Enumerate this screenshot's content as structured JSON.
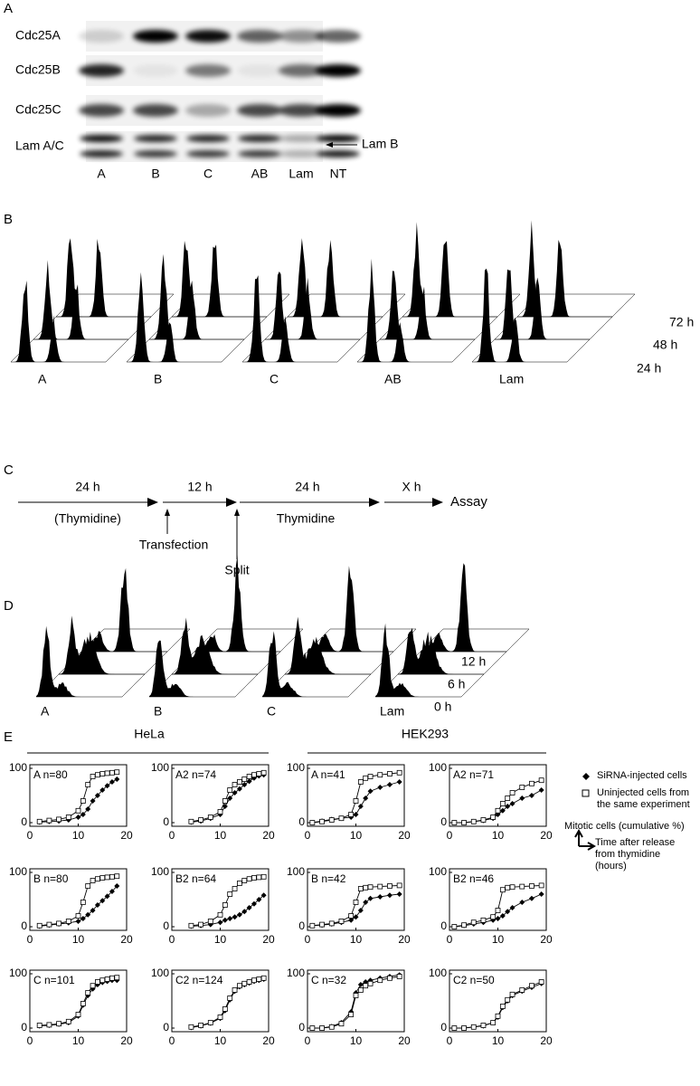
{
  "panels": {
    "a": {
      "label": "A",
      "rows": [
        "Cdc25A",
        "Cdc25B",
        "Cdc25C",
        "Lam A/C"
      ],
      "lanes": [
        "A",
        "B",
        "C",
        "AB",
        "Lam",
        "NT"
      ],
      "annotation": "Lam B"
    },
    "b": {
      "label": "B",
      "groups": [
        "A",
        "B",
        "C",
        "AB",
        "Lam"
      ],
      "times": [
        "72 h",
        "48 h",
        "24 h"
      ]
    },
    "c": {
      "label": "C",
      "durations": [
        "24 h",
        "12 h",
        "24 h",
        "X h"
      ],
      "treatments": [
        "(Thymidine)",
        "Thymidine"
      ],
      "events": [
        "Transfection",
        "Split"
      ],
      "end": "Assay"
    },
    "d": {
      "label": "D",
      "groups": [
        "A",
        "B",
        "C",
        "Lam"
      ],
      "times": [
        "12 h",
        "6 h",
        "0 h"
      ]
    },
    "e": {
      "label": "E",
      "cell_lines": [
        "HeLa",
        "HEK293"
      ],
      "y_axis_note": "Mitotic cells (cumulative %)",
      "x_axis_note": "Time after release from thymidine (hours)"
    }
  },
  "chart_data": [
    {
      "type": "line",
      "title": "A n=80",
      "x": [
        2,
        4,
        6,
        8,
        10,
        11,
        12,
        13,
        14,
        15,
        16,
        17,
        18
      ],
      "xlim": [
        0,
        20
      ],
      "xticks": [
        0,
        10,
        20
      ],
      "ylim": [
        0,
        100
      ],
      "yticks": [
        0,
        100
      ],
      "series": [
        {
          "name": "SiRNA-injected cells",
          "color": "#000000",
          "marker": "diamond",
          "values": [
            1,
            2,
            3,
            5,
            10,
            15,
            25,
            40,
            50,
            60,
            68,
            75,
            80
          ]
        },
        {
          "name": "Uninjected cells from the same experiment",
          "color": "#000000",
          "marker": "square",
          "values": [
            2,
            4,
            6,
            10,
            22,
            40,
            70,
            85,
            88,
            90,
            91,
            92,
            93
          ]
        }
      ]
    },
    {
      "type": "line",
      "title": "A2 n=74",
      "x": [
        4,
        6,
        8,
        10,
        11,
        12,
        13,
        14,
        15,
        16,
        17,
        18,
        19
      ],
      "xlim": [
        0,
        20
      ],
      "xticks": [
        0,
        10,
        20
      ],
      "ylim": [
        0,
        100
      ],
      "yticks": [
        0,
        100
      ],
      "series": [
        {
          "name": "SiRNA-injected cells",
          "color": "#000000",
          "marker": "diamond",
          "values": [
            1,
            3,
            8,
            15,
            30,
            45,
            55,
            62,
            70,
            76,
            82,
            86,
            88
          ]
        },
        {
          "name": "Uninjected cells from the same experiment",
          "color": "#000000",
          "marker": "square",
          "values": [
            2,
            5,
            10,
            20,
            40,
            60,
            70,
            75,
            80,
            85,
            88,
            90,
            92
          ]
        }
      ]
    },
    {
      "type": "line",
      "title": "A n=41",
      "x": [
        1,
        3,
        5,
        7,
        9,
        10,
        11,
        12,
        13,
        15,
        17,
        19
      ],
      "xlim": [
        0,
        20
      ],
      "xticks": [
        0,
        10,
        20
      ],
      "ylim": [
        0,
        100
      ],
      "yticks": [
        0,
        100
      ],
      "series": [
        {
          "name": "SiRNA-injected cells",
          "color": "#000000",
          "marker": "diamond",
          "values": [
            0,
            3,
            6,
            8,
            10,
            15,
            30,
            45,
            58,
            65,
            70,
            75
          ]
        },
        {
          "name": "Uninjected cells from the same experiment",
          "color": "#000000",
          "marker": "square",
          "values": [
            0,
            2,
            5,
            8,
            15,
            40,
            75,
            82,
            85,
            88,
            90,
            92
          ]
        }
      ]
    },
    {
      "type": "line",
      "title": "A2 n=71",
      "x": [
        1,
        3,
        5,
        7,
        9,
        10,
        11,
        12,
        13,
        15,
        17,
        19
      ],
      "xlim": [
        0,
        20
      ],
      "xticks": [
        0,
        10,
        20
      ],
      "ylim": [
        0,
        100
      ],
      "yticks": [
        0,
        100
      ],
      "series": [
        {
          "name": "SiRNA-injected cells",
          "color": "#000000",
          "marker": "diamond",
          "values": [
            0,
            0,
            2,
            4,
            8,
            15,
            22,
            30,
            35,
            45,
            50,
            60
          ]
        },
        {
          "name": "Uninjected cells from the same experiment",
          "color": "#000000",
          "marker": "square",
          "values": [
            0,
            0,
            2,
            5,
            10,
            22,
            35,
            45,
            55,
            65,
            72,
            78
          ]
        }
      ]
    },
    {
      "type": "line",
      "title": "B n=80",
      "x": [
        2,
        4,
        6,
        8,
        10,
        11,
        12,
        13,
        14,
        15,
        16,
        17,
        18
      ],
      "xlim": [
        0,
        20
      ],
      "xticks": [
        0,
        10,
        20
      ],
      "ylim": [
        0,
        100
      ],
      "yticks": [
        0,
        100
      ],
      "series": [
        {
          "name": "SiRNA-injected cells",
          "color": "#000000",
          "marker": "diamond",
          "values": [
            1,
            3,
            5,
            7,
            10,
            15,
            22,
            30,
            40,
            48,
            56,
            65,
            75
          ]
        },
        {
          "name": "Uninjected cells from the same experiment",
          "color": "#000000",
          "marker": "square",
          "values": [
            2,
            4,
            6,
            10,
            20,
            45,
            75,
            85,
            88,
            90,
            91,
            92,
            93
          ]
        }
      ]
    },
    {
      "type": "line",
      "title": "B2 n=64",
      "x": [
        4,
        6,
        8,
        10,
        11,
        12,
        13,
        14,
        15,
        16,
        17,
        18,
        19
      ],
      "xlim": [
        0,
        20
      ],
      "xticks": [
        0,
        10,
        20
      ],
      "ylim": [
        0,
        100
      ],
      "yticks": [
        0,
        100
      ],
      "series": [
        {
          "name": "SiRNA-injected cells",
          "color": "#000000",
          "marker": "diamond",
          "values": [
            1,
            2,
            4,
            8,
            12,
            15,
            18,
            22,
            28,
            35,
            42,
            50,
            58
          ]
        },
        {
          "name": "Uninjected cells from the same experiment",
          "color": "#000000",
          "marker": "square",
          "values": [
            2,
            4,
            10,
            22,
            40,
            60,
            70,
            80,
            85,
            88,
            90,
            91,
            92
          ]
        }
      ]
    },
    {
      "type": "line",
      "title": "B n=42",
      "x": [
        1,
        3,
        5,
        7,
        9,
        10,
        11,
        12,
        13,
        15,
        17,
        19
      ],
      "xlim": [
        0,
        20
      ],
      "xticks": [
        0,
        10,
        20
      ],
      "ylim": [
        0,
        100
      ],
      "yticks": [
        0,
        100
      ],
      "series": [
        {
          "name": "SiRNA-injected cells",
          "color": "#000000",
          "marker": "diamond",
          "values": [
            2,
            3,
            5,
            8,
            12,
            18,
            30,
            45,
            52,
            55,
            58,
            60
          ]
        },
        {
          "name": "Uninjected cells from the same experiment",
          "color": "#000000",
          "marker": "square",
          "values": [
            2,
            4,
            6,
            10,
            20,
            45,
            70,
            72,
            73,
            74,
            75,
            76
          ]
        }
      ]
    },
    {
      "type": "line",
      "title": "B2 n=46",
      "x": [
        1,
        3,
        5,
        7,
        9,
        10,
        11,
        12,
        13,
        15,
        17,
        19
      ],
      "xlim": [
        0,
        20
      ],
      "xticks": [
        0,
        10,
        20
      ],
      "ylim": [
        0,
        100
      ],
      "yticks": [
        0,
        100
      ],
      "series": [
        {
          "name": "SiRNA-injected cells",
          "color": "#000000",
          "marker": "diamond",
          "values": [
            0,
            2,
            5,
            8,
            12,
            15,
            20,
            28,
            35,
            45,
            52,
            60
          ]
        },
        {
          "name": "Uninjected cells from the same experiment",
          "color": "#000000",
          "marker": "square",
          "values": [
            0,
            3,
            8,
            12,
            18,
            30,
            68,
            72,
            73,
            74,
            75,
            76
          ]
        }
      ]
    },
    {
      "type": "line",
      "title": "C n=101",
      "x": [
        2,
        4,
        6,
        8,
        10,
        11,
        12,
        13,
        14,
        15,
        16,
        17,
        18
      ],
      "xlim": [
        0,
        20
      ],
      "xticks": [
        0,
        10,
        20
      ],
      "ylim": [
        0,
        100
      ],
      "yticks": [
        0,
        100
      ],
      "series": [
        {
          "name": "SiRNA-injected cells",
          "color": "#000000",
          "marker": "diamond",
          "values": [
            4,
            5,
            7,
            10,
            22,
            42,
            60,
            72,
            80,
            84,
            86,
            88,
            88
          ]
        },
        {
          "name": "Uninjected cells from the same experiment",
          "color": "#000000",
          "marker": "square",
          "values": [
            5,
            6,
            8,
            12,
            25,
            45,
            65,
            78,
            85,
            88,
            90,
            92,
            93
          ]
        }
      ]
    },
    {
      "type": "line",
      "title": "C2 n=124",
      "x": [
        4,
        6,
        8,
        10,
        11,
        12,
        13,
        14,
        15,
        16,
        17,
        18,
        19
      ],
      "xlim": [
        0,
        20
      ],
      "xticks": [
        0,
        10,
        20
      ],
      "ylim": [
        0,
        100
      ],
      "yticks": [
        0,
        100
      ],
      "series": [
        {
          "name": "SiRNA-injected cells",
          "color": "#000000",
          "marker": "diamond",
          "values": [
            1,
            4,
            9,
            18,
            32,
            52,
            68,
            76,
            80,
            83,
            86,
            88,
            90
          ]
        },
        {
          "name": "Uninjected cells from the same experiment",
          "color": "#000000",
          "marker": "square",
          "values": [
            2,
            5,
            10,
            20,
            35,
            55,
            70,
            78,
            82,
            85,
            88,
            90,
            92
          ]
        }
      ]
    },
    {
      "type": "line",
      "title": "C n=32",
      "x": [
        1,
        3,
        5,
        7,
        9,
        10,
        11,
        12,
        13,
        15,
        17,
        19
      ],
      "xlim": [
        0,
        20
      ],
      "xticks": [
        0,
        10,
        20
      ],
      "ylim": [
        0,
        100
      ],
      "yticks": [
        0,
        100
      ],
      "series": [
        {
          "name": "SiRNA-injected cells",
          "color": "#000000",
          "marker": "diamond",
          "values": [
            0,
            0,
            3,
            10,
            30,
            65,
            80,
            85,
            88,
            92,
            95,
            98
          ]
        },
        {
          "name": "Uninjected cells from the same experiment",
          "color": "#000000",
          "marker": "square",
          "values": [
            0,
            0,
            2,
            8,
            25,
            60,
            70,
            78,
            82,
            88,
            92,
            95
          ]
        }
      ]
    },
    {
      "type": "line",
      "title": "C2 n=50",
      "x": [
        1,
        3,
        5,
        7,
        9,
        10,
        11,
        12,
        13,
        15,
        17,
        19
      ],
      "xlim": [
        0,
        20
      ],
      "xticks": [
        0,
        10,
        20
      ],
      "ylim": [
        0,
        100
      ],
      "yticks": [
        0,
        100
      ],
      "series": [
        {
          "name": "SiRNA-injected cells",
          "color": "#000000",
          "marker": "diamond",
          "values": [
            0,
            0,
            2,
            4,
            10,
            20,
            38,
            50,
            60,
            68,
            75,
            82
          ]
        },
        {
          "name": "Uninjected cells from the same experiment",
          "color": "#000000",
          "marker": "square",
          "values": [
            0,
            0,
            2,
            5,
            10,
            22,
            40,
            52,
            62,
            70,
            78,
            85
          ]
        }
      ]
    }
  ]
}
